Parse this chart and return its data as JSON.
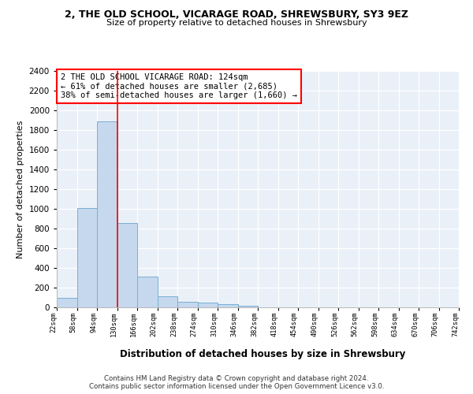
{
  "title1": "2, THE OLD SCHOOL, VICARAGE ROAD, SHREWSBURY, SY3 9EZ",
  "title2": "Size of property relative to detached houses in Shrewsbury",
  "xlabel": "Distribution of detached houses by size in Shrewsbury",
  "ylabel": "Number of detached properties",
  "bar_values": [
    95,
    1010,
    1890,
    860,
    315,
    115,
    60,
    50,
    30,
    20,
    0,
    0,
    0,
    0,
    0,
    0,
    0,
    0,
    0,
    0
  ],
  "bin_labels": [
    "22sqm",
    "58sqm",
    "94sqm",
    "130sqm",
    "166sqm",
    "202sqm",
    "238sqm",
    "274sqm",
    "310sqm",
    "346sqm",
    "382sqm",
    "418sqm",
    "454sqm",
    "490sqm",
    "526sqm",
    "562sqm",
    "598sqm",
    "634sqm",
    "670sqm",
    "706sqm",
    "742sqm"
  ],
  "bar_color": "#c5d8ee",
  "bar_edge_color": "#7aafd4",
  "red_line_x": 3,
  "annotation_line1": "2 THE OLD SCHOOL VICARAGE ROAD: 124sqm",
  "annotation_line2": "← 61% of detached houses are smaller (2,685)",
  "annotation_line3": "38% of semi-detached houses are larger (1,660) →",
  "ylim": [
    0,
    2400
  ],
  "yticks": [
    0,
    200,
    400,
    600,
    800,
    1000,
    1200,
    1400,
    1600,
    1800,
    2000,
    2200,
    2400
  ],
  "footer1": "Contains HM Land Registry data © Crown copyright and database right 2024.",
  "footer2": "Contains public sector information licensed under the Open Government Licence v3.0.",
  "bg_color": "#ffffff",
  "plot_bg_color": "#eaf0f8"
}
